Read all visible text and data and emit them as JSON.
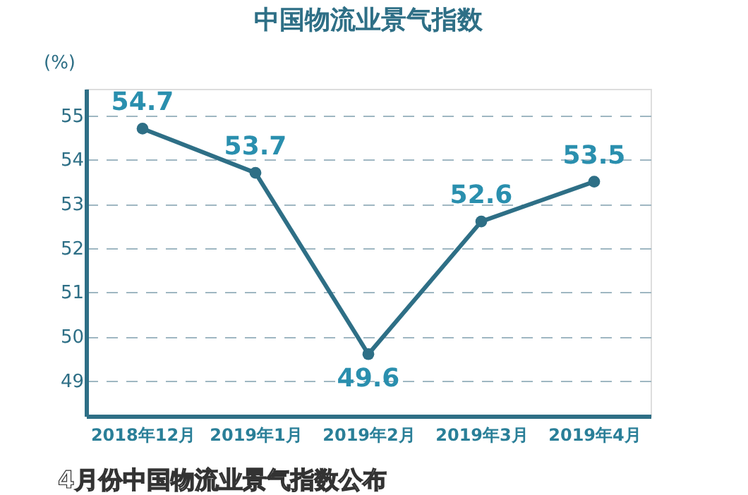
{
  "chart_data": {
    "type": "line",
    "title": "中国物流业景气指数",
    "ylabel": "(%)",
    "categories": [
      "2018年12月",
      "2019年1月",
      "2019年2月",
      "2019年3月",
      "2019年4月"
    ],
    "series": [
      {
        "color": "#2e6f86",
        "values": [
          54.7,
          53.7,
          49.6,
          52.6,
          53.5
        ]
      }
    ],
    "ylim": [
      48.2,
      55.6
    ],
    "yticks": [
      49,
      50,
      51,
      52,
      53,
      54,
      55
    ],
    "grid": "y",
    "marker": "circle",
    "line_style": "solid",
    "data_labels": true,
    "annotations": [
      "4月份中国物流业景气指数公布"
    ]
  }
}
